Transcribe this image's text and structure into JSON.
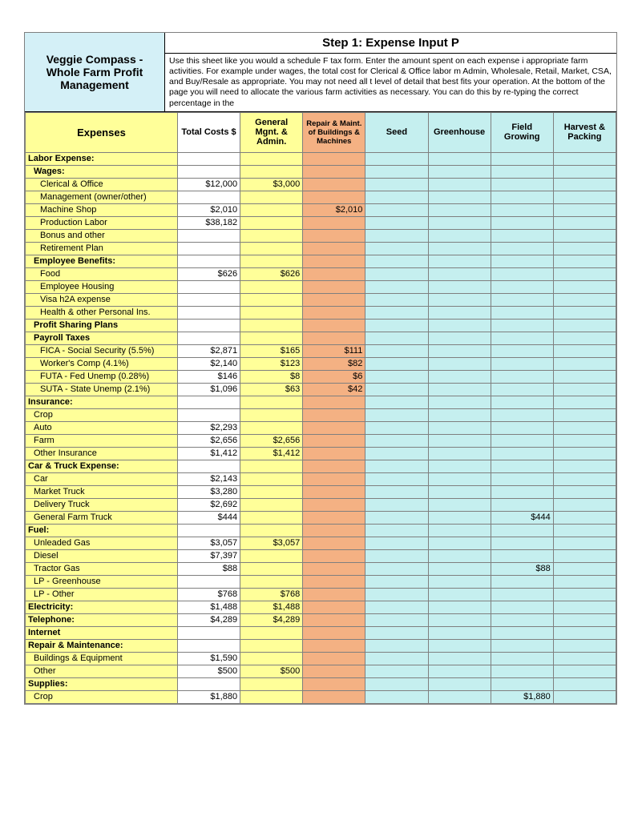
{
  "colors": {
    "title_bg": "#d4f0f7",
    "yellow": "#ffff99",
    "orange": "#f4b183",
    "cyan": "#c5efef",
    "white": "#ffffff",
    "border": "#7f7f7f"
  },
  "title": "Veggie Compass - Whole Farm Profit Management",
  "step_title": "Step 1: Expense Input P",
  "step_desc": "Use this sheet like you would a schedule F tax form. Enter the amount spent on each expense i appropriate farm activities. For example under wages, the total cost for Clerical & Office labor m Admin, Wholesale, Retail, Market, CSA, and Buy/Resale as appropriate. You may not need all t level of detail that best fits your operation. At the bottom of the page you will need to allocate the various farm activities as necessary. You can do this by re-typing the correct percentage in the",
  "headers": {
    "expenses": "Expenses",
    "total": "Total Costs $",
    "gma": "General Mgnt. & Admin.",
    "rm": "Repair & Maint. of Buildings & Machines",
    "seed": "Seed",
    "gh": "Greenhouse",
    "fg": "Field Growing",
    "hp": "Harvest & Packing"
  },
  "rows": [
    {
      "t": "section",
      "label": "Labor Expense:"
    },
    {
      "t": "sub",
      "label": "Wages:",
      "bold": true,
      "indent": 1
    },
    {
      "t": "r",
      "label": "Clerical & Office",
      "indent": 2,
      "total": "$12,000",
      "gma": "$3,000"
    },
    {
      "t": "r",
      "label": "Management (owner/other)",
      "indent": 2
    },
    {
      "t": "r",
      "label": "Machine Shop",
      "indent": 2,
      "total": "$2,010",
      "rm": "$2,010"
    },
    {
      "t": "r",
      "label": "Production Labor",
      "indent": 2,
      "total": "$38,182"
    },
    {
      "t": "r",
      "label": "Bonus and other",
      "indent": 2
    },
    {
      "t": "r",
      "label": "Retirement Plan",
      "indent": 2
    },
    {
      "t": "sub",
      "label": "Employee Benefits:",
      "bold": true,
      "indent": 1
    },
    {
      "t": "r",
      "label": "Food",
      "indent": 2,
      "total": "$626",
      "gma": "$626"
    },
    {
      "t": "r",
      "label": "Employee Housing",
      "indent": 2
    },
    {
      "t": "r",
      "label": "Visa h2A expense",
      "indent": 2
    },
    {
      "t": "r",
      "label": "Health & other Personal Ins.",
      "indent": 2
    },
    {
      "t": "sub",
      "label": "Profit Sharing Plans",
      "bold": true,
      "indent": 1
    },
    {
      "t": "sub",
      "label": "Payroll Taxes",
      "bold": true,
      "indent": 1
    },
    {
      "t": "r",
      "label": "FICA - Social Security (5.5%)",
      "indent": 2,
      "total": "$2,871",
      "gma": "$165",
      "rm": "$111"
    },
    {
      "t": "r",
      "label": "Worker's Comp  (4.1%)",
      "indent": 2,
      "total": "$2,140",
      "gma": "$123",
      "rm": "$82"
    },
    {
      "t": "r",
      "label": "FUTA - Fed Unemp (0.28%)",
      "indent": 2,
      "total": "$146",
      "gma": "$8",
      "rm": "$6"
    },
    {
      "t": "r",
      "label": "SUTA - State Unemp (2.1%)",
      "indent": 2,
      "total": "$1,096",
      "gma": "$63",
      "rm": "$42"
    },
    {
      "t": "section",
      "label": "Insurance:"
    },
    {
      "t": "r",
      "label": "Crop",
      "indent": 1
    },
    {
      "t": "r",
      "label": "Auto",
      "indent": 1,
      "total": "$2,293"
    },
    {
      "t": "r",
      "label": "Farm",
      "indent": 1,
      "total": "$2,656",
      "gma": "$2,656"
    },
    {
      "t": "r",
      "label": "Other Insurance",
      "indent": 1,
      "total": "$1,412",
      "gma": "$1,412"
    },
    {
      "t": "section",
      "label": "Car & Truck Expense:"
    },
    {
      "t": "r",
      "label": "Car",
      "indent": 1,
      "total": "$2,143"
    },
    {
      "t": "r",
      "label": "Market Truck",
      "indent": 1,
      "total": "$3,280"
    },
    {
      "t": "r",
      "label": "Delivery Truck",
      "indent": 1,
      "total": "$2,692"
    },
    {
      "t": "r",
      "label": "General Farm Truck",
      "indent": 1,
      "total": "$444",
      "fg": "$444"
    },
    {
      "t": "section",
      "label": "Fuel:"
    },
    {
      "t": "r",
      "label": "Unleaded Gas",
      "indent": 1,
      "total": "$3,057",
      "gma": "$3,057"
    },
    {
      "t": "r",
      "label": "Diesel",
      "indent": 1,
      "total": "$7,397"
    },
    {
      "t": "r",
      "label": "Tractor Gas",
      "indent": 1,
      "total": "$88",
      "fg": "$88"
    },
    {
      "t": "r",
      "label": "LP - Greenhouse",
      "indent": 1
    },
    {
      "t": "r",
      "label": "LP - Other",
      "indent": 1,
      "total": "$768",
      "gma": "$768"
    },
    {
      "t": "section",
      "label": "Electricity:",
      "total": "$1,488",
      "gma": "$1,488"
    },
    {
      "t": "section",
      "label": "Telephone:",
      "total": "$4,289",
      "gma": "$4,289"
    },
    {
      "t": "section",
      "label": "Internet"
    },
    {
      "t": "section",
      "label": "Repair & Maintenance:"
    },
    {
      "t": "r",
      "label": "Buildings & Equipment",
      "indent": 1,
      "total": "$1,590"
    },
    {
      "t": "r",
      "label": "Other",
      "indent": 1,
      "total": "$500",
      "gma": "$500"
    },
    {
      "t": "section",
      "label": "Supplies:"
    },
    {
      "t": "r",
      "label": "Crop",
      "indent": 1,
      "total": "$1,880",
      "fg": "$1,880"
    }
  ]
}
